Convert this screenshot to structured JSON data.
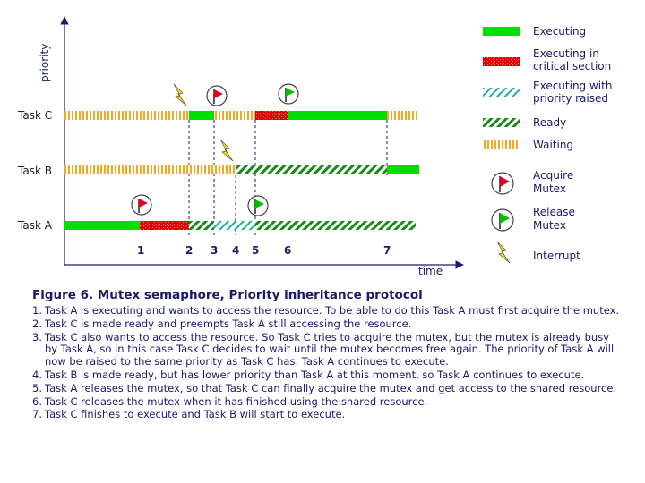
{
  "figure": {
    "title": "Figure 6. Mutex semaphore, Priority inheritance protocol",
    "steps": [
      {
        "num": "1.",
        "text": "Task A is executing and wants to access the resource. To be able to do this Task A must first acquire the mutex."
      },
      {
        "num": "2.",
        "text": "Task C is made ready and preempts Task A still accessing the resource."
      },
      {
        "num": "3.",
        "text": "Task C also wants to access the resource. So Task C tries to acquire the mutex, but the mutex is already busy by Task A, so in this case Task C decides to wait until the mutex becomes free again. The priority of Task A will now be raised to the same priority as Task C has. Task A continues to execute."
      },
      {
        "num": "4.",
        "text": "Task B is made ready, but has lower priority than Task A at this moment, so Task A continues to execute."
      },
      {
        "num": "5.",
        "text": "Task A releases the mutex, so that Task C can finally acquire the mutex and get access to the shared resource."
      },
      {
        "num": "6.",
        "text": "Task C releases the mutex when it has finished using the shared resource."
      },
      {
        "num": "7.",
        "text": "Task C finishes to execute and Task B will start to execute."
      }
    ]
  },
  "axes": {
    "y_label": "priority",
    "x_label": "time"
  },
  "tasks": [
    {
      "id": "task-c",
      "label": "Task C"
    },
    {
      "id": "task-b",
      "label": "Task B"
    },
    {
      "id": "task-a",
      "label": "Task A"
    }
  ],
  "time_markers": [
    "1",
    "2",
    "3",
    "4",
    "5",
    "6",
    "7"
  ],
  "legend": [
    {
      "id": "executing",
      "label_lines": [
        "Executing"
      ]
    },
    {
      "id": "critical",
      "label_lines": [
        "Executing in",
        "critical section"
      ]
    },
    {
      "id": "raised",
      "label_lines": [
        "Executing with",
        "priority raised"
      ]
    },
    {
      "id": "ready",
      "label_lines": [
        "Ready"
      ]
    },
    {
      "id": "waiting",
      "label_lines": [
        "Waiting"
      ]
    },
    {
      "id": "acquire",
      "label_lines": [
        "Acquire",
        "Mutex"
      ]
    },
    {
      "id": "release",
      "label_lines": [
        "Release",
        "Mutex"
      ]
    },
    {
      "id": "interrupt",
      "label_lines": [
        "Interrupt"
      ]
    }
  ],
  "colors": {
    "executing": "#00e000",
    "critical": "#e00000",
    "critical_dot": "#ff9090",
    "raised": "#20b0a0",
    "ready": "#1a8a1a",
    "waiting": "#f5a623",
    "axis": "#1a1a6e",
    "acquire_flag": "#e00020",
    "release_flag": "#00c000",
    "lightning": "#f0e000"
  }
}
